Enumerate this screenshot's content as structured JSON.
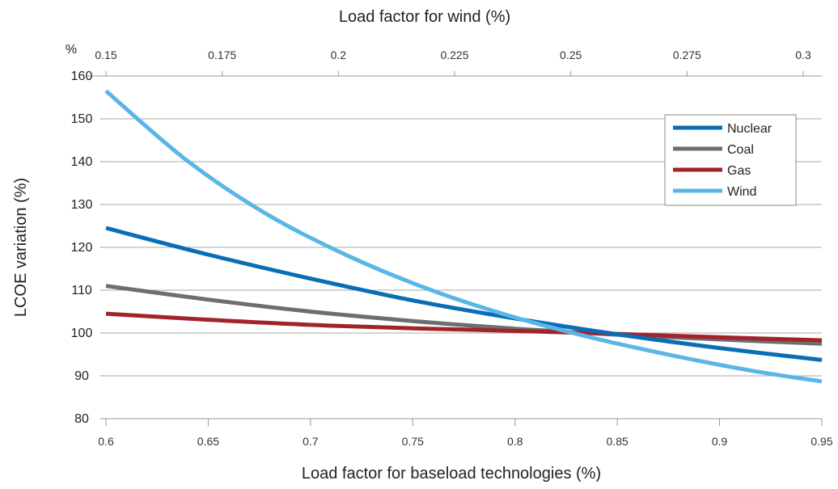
{
  "chart_data": {
    "type": "line",
    "xlabel": "Load factor for baseload technologies (%)",
    "x2label": "Load factor for wind (%)",
    "ylabel": "LCOE variation (%)",
    "yunit": "%",
    "xlim": [
      0.6,
      0.95
    ],
    "x2lim": [
      0.15,
      0.304
    ],
    "ylim": [
      80,
      160
    ],
    "xticks": [
      "0.6",
      "0.65",
      "0.7",
      "0.75",
      "0.8",
      "0.85",
      "0.9",
      "0.95"
    ],
    "xtick_values": [
      0.6,
      0.65,
      0.7,
      0.75,
      0.8,
      0.85,
      0.9,
      0.95
    ],
    "x2ticks": [
      "0.15",
      "0.175",
      "0.2",
      "0.225",
      "0.25",
      "0.275",
      "0.3"
    ],
    "x2tick_values": [
      0.15,
      0.175,
      0.2,
      0.225,
      0.25,
      0.275,
      0.3
    ],
    "yticks": [
      "160",
      "150",
      "140",
      "130",
      "120",
      "110",
      "100",
      "90",
      "80"
    ],
    "ytick_values": [
      160,
      150,
      140,
      130,
      120,
      110,
      100,
      90,
      80
    ],
    "grid": "horizontal",
    "legend_position": "top-right",
    "x": [
      0.6,
      0.65,
      0.7,
      0.75,
      0.8,
      0.85,
      0.9,
      0.95
    ],
    "series": [
      {
        "name": "Nuclear",
        "color": "#0a6db5",
        "axis": "bottom",
        "values": [
          124.5,
          118.3,
          112.7,
          107.6,
          103.4,
          99.7,
          96.5,
          93.7
        ]
      },
      {
        "name": "Coal",
        "color": "#6d6e71",
        "axis": "bottom",
        "values": [
          111.0,
          107.8,
          105.0,
          102.8,
          101.0,
          99.6,
          98.5,
          97.5
        ]
      },
      {
        "name": "Gas",
        "color": "#a3232a",
        "axis": "bottom",
        "values": [
          104.5,
          103.1,
          101.9,
          101.1,
          100.5,
          99.8,
          99.0,
          98.3
        ]
      },
      {
        "name": "Wind",
        "color": "#5ab6e6",
        "axis": "top",
        "x": [
          0.15,
          0.1675,
          0.185,
          0.2025,
          0.22,
          0.2375,
          0.255,
          0.2725,
          0.29,
          0.304
        ],
        "values": [
          156.5,
          140.2,
          127.5,
          117.8,
          110.0,
          103.8,
          98.8,
          94.6,
          91.0,
          88.7
        ]
      }
    ]
  }
}
